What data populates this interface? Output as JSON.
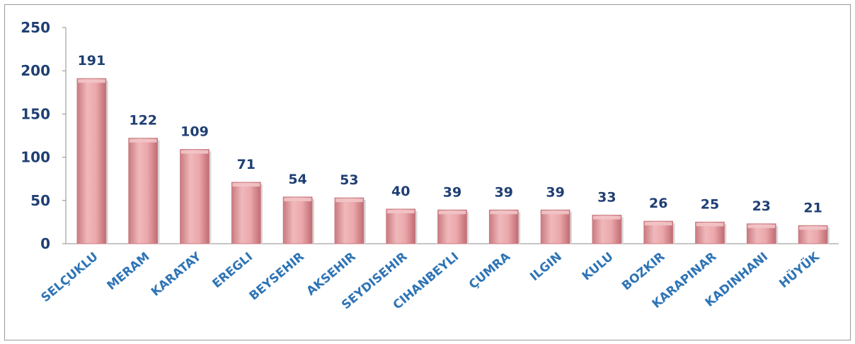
{
  "chart_data": {
    "type": "bar",
    "title": "",
    "xlabel": "",
    "ylabel": "",
    "categories": [
      "SELÇUKLU",
      "MERAM",
      "KARATAY",
      "EREGLI",
      "BEYSEHIR",
      "AKSEHIR",
      "SEYDISEHIR",
      "CIHANBEYLI",
      "ÇUMRA",
      "ILGIN",
      "KULU",
      "BOZKIR",
      "KARAPINAR",
      "KADINHANI",
      "HÜYÜK"
    ],
    "values": [
      191,
      122,
      109,
      71,
      54,
      53,
      40,
      39,
      39,
      39,
      33,
      26,
      25,
      23,
      21
    ],
    "ylim": [
      0,
      250
    ],
    "yticks": [
      0,
      50,
      100,
      150,
      200,
      250
    ],
    "grid": false,
    "legend": "none",
    "colors": {
      "bar_fill": "#e8a0a4",
      "bar_dark": "#c97a80",
      "bar_top": "#f2c4c6",
      "label": "#1f3f73",
      "category_label": "#2e74b5",
      "axis": "#8c8c8c"
    }
  }
}
